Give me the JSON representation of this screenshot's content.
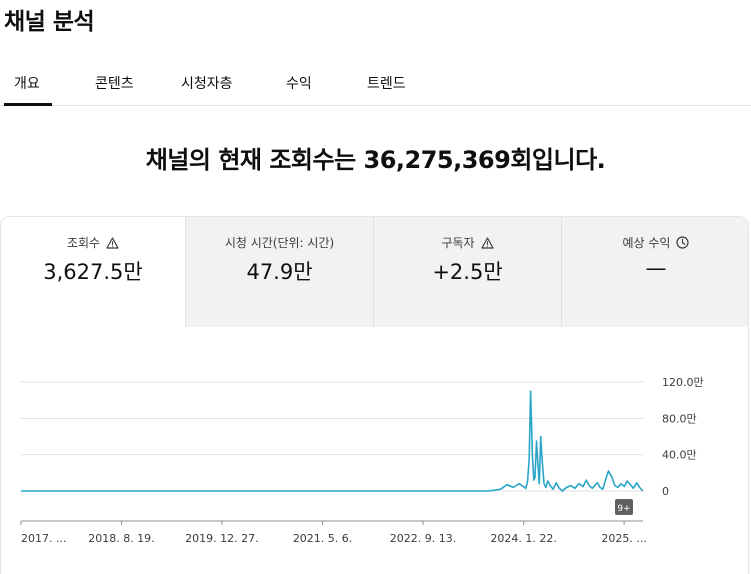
{
  "page": {
    "title": "채널 분석"
  },
  "tabs": [
    {
      "label": "개요",
      "active": true
    },
    {
      "label": "콘텐츠",
      "active": false
    },
    {
      "label": "시청자층",
      "active": false
    },
    {
      "label": "수익",
      "active": false
    },
    {
      "label": "트렌드",
      "active": false
    }
  ],
  "headline": "채널의 현재 조회수는 36,275,369회입니다.",
  "metrics": [
    {
      "label": "조회수",
      "value": "3,627.5만",
      "icon": "warning-icon",
      "selected": true
    },
    {
      "label": "시청 시간(단위: 시간)",
      "value": "47.9만",
      "icon": "",
      "selected": false
    },
    {
      "label": "구독자",
      "value": "+2.5만",
      "icon": "warning-icon",
      "selected": false
    },
    {
      "label": "예상 수익",
      "value": "—",
      "icon": "clock-icon",
      "selected": false
    }
  ],
  "chart_badge": "9+",
  "colors": {
    "line": "#2aa5c8",
    "accent": "#0f0f0f"
  },
  "chart_data": {
    "type": "line",
    "title": "",
    "xlabel": "",
    "ylabel": "",
    "y_tick_labels": [
      "120.0만",
      "80.0만",
      "40.0만",
      "0"
    ],
    "y_ticks": [
      1200000,
      800000,
      400000,
      0
    ],
    "ylim": [
      0,
      1200000
    ],
    "x_tick_labels": [
      "2017. ...",
      "2018. 8. 19.",
      "2019. 12. 27.",
      "2021. 5. 6.",
      "2022. 9. 13.",
      "2024. 1. 22.",
      "2025. ..."
    ],
    "x_tick_dates": [
      "2017-04-11",
      "2018-08-19",
      "2019-12-27",
      "2021-05-06",
      "2022-09-13",
      "2024-01-22",
      "2025-05-31"
    ],
    "xlim": [
      "2017-04-11",
      "2025-09-01"
    ],
    "grid": true,
    "series": [
      {
        "x": [
          "2017-04-11",
          "2023-08-01",
          "2023-10-01",
          "2023-11-01",
          "2023-12-01",
          "2024-01-01",
          "2024-01-20",
          "2024-02-01",
          "2024-02-10",
          "2024-02-18",
          "2024-02-25",
          "2024-03-05",
          "2024-03-12",
          "2024-03-18",
          "2024-03-25",
          "2024-04-01",
          "2024-04-08",
          "2024-04-15",
          "2024-04-22",
          "2024-05-01",
          "2024-05-10",
          "2024-05-20",
          "2024-06-01",
          "2024-06-15",
          "2024-07-01",
          "2024-07-15",
          "2024-08-01",
          "2024-08-20",
          "2024-09-10",
          "2024-10-01",
          "2024-10-20",
          "2024-11-10",
          "2024-11-25",
          "2024-12-10",
          "2024-12-25",
          "2025-01-10",
          "2025-01-20",
          "2025-02-01",
          "2025-02-15",
          "2025-03-01",
          "2025-03-15",
          "2025-04-01",
          "2025-04-15",
          "2025-05-01",
          "2025-05-15",
          "2025-06-01",
          "2025-06-15",
          "2025-07-01",
          "2025-07-15",
          "2025-08-01",
          "2025-08-15",
          "2025-09-01"
        ],
        "y": [
          0,
          0,
          20000,
          70000,
          40000,
          80000,
          50000,
          30000,
          100000,
          350000,
          1100000,
          400000,
          120000,
          150000,
          550000,
          300000,
          80000,
          600000,
          350000,
          80000,
          40000,
          110000,
          60000,
          20000,
          90000,
          30000,
          0,
          40000,
          60000,
          30000,
          80000,
          50000,
          120000,
          60000,
          30000,
          70000,
          90000,
          40000,
          20000,
          130000,
          220000,
          150000,
          60000,
          40000,
          80000,
          50000,
          110000,
          70000,
          30000,
          90000,
          40000,
          0
        ]
      }
    ]
  }
}
